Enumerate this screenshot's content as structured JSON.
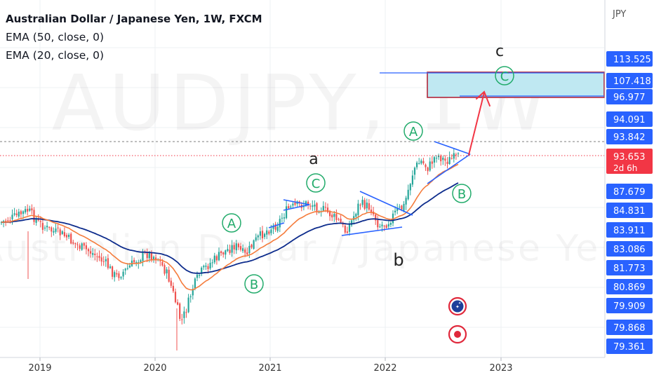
{
  "header": {
    "symbol_line": "Australian Dollar / Japanese Yen, 1W, FXCM",
    "ema50_label": "EMA (50, close, 0)",
    "ema20_label": "EMA (20, close, 0)"
  },
  "watermark": {
    "ticker": "AUDJPY, 1W",
    "name": "Australian Dollar / Japanese Yen"
  },
  "price_axis": {
    "currency": "JPY",
    "labels": [
      {
        "value": "113.525",
        "color": "#2962ff"
      },
      {
        "value": "107.418",
        "color": "#2962ff"
      },
      {
        "value": "96.977",
        "color": "#2962ff"
      },
      {
        "value": "94.091",
        "color": "#2962ff"
      },
      {
        "value": "93.842",
        "color": "#2962ff"
      },
      {
        "value": "93.653",
        "color": "#f23645",
        "sub": "2d 6h"
      },
      {
        "value": "87.679",
        "color": "#2962ff"
      },
      {
        "value": "84.831",
        "color": "#2962ff"
      },
      {
        "value": "83.911",
        "color": "#2962ff"
      },
      {
        "value": "83.086",
        "color": "#2962ff"
      },
      {
        "value": "81.773",
        "color": "#2962ff"
      },
      {
        "value": "80.869",
        "color": "#2962ff"
      },
      {
        "value": "79.909",
        "color": "#2962ff"
      },
      {
        "value": "79.868",
        "color": "#2962ff"
      },
      {
        "value": "79.361",
        "color": "#2962ff"
      }
    ]
  },
  "time_axis": {
    "labels": [
      "2019",
      "2020",
      "2021",
      "2022",
      "2023"
    ]
  },
  "annotations": {
    "wave_a": "a",
    "wave_b": "b",
    "wave_c": "c",
    "circle_A": "A",
    "circle_B": "B",
    "circle_C": "C"
  },
  "colors": {
    "up": "#26a69a",
    "down": "#ef5350",
    "ema50": "#0d2c8c",
    "ema20": "#f57c3c",
    "circle": "#22ab6b",
    "target_box_fill": "#bfe8f2",
    "target_box_border": "#b2263a",
    "trendline": "#2962ff",
    "arrow": "#f23645"
  },
  "chart_data": {
    "type": "candlestick",
    "symbol": "AUDJPY",
    "interval": "1W",
    "x_ticks": [
      "2019",
      "2020",
      "2021",
      "2022",
      "2023"
    ],
    "ylim": [
      72,
      113
    ],
    "indicators": [
      "EMA 50",
      "EMA 20"
    ],
    "legend": "top-left",
    "grid": true
  }
}
